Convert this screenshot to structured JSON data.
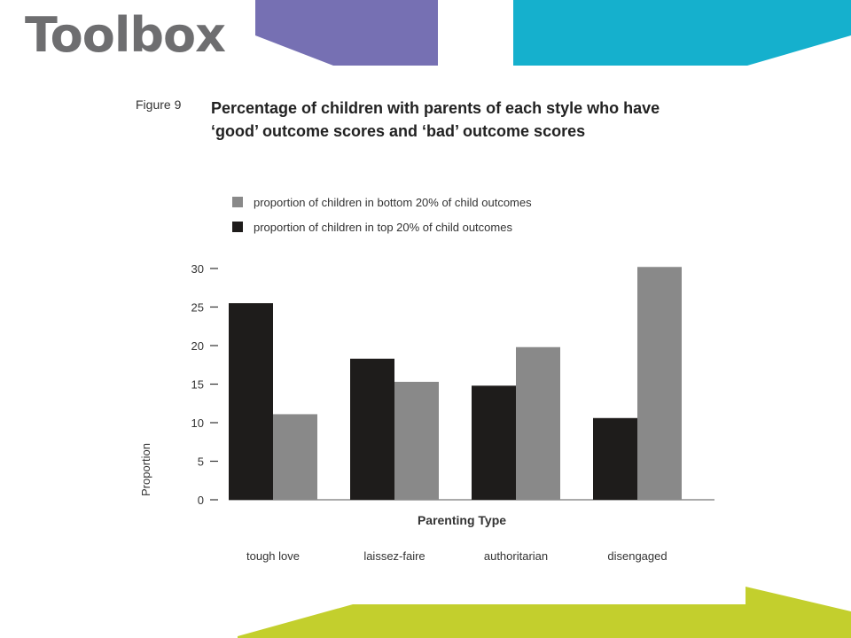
{
  "header": {
    "logo_text": "Toolbox"
  },
  "figure": {
    "label": "Figure 9",
    "title": "Percentage of children with parents of each style who have ‘good’ outcome scores and ‘bad’ outcome scores"
  },
  "colors": {
    "top": "#1e1c1b",
    "bottom": "#898989",
    "purple": "#7670b3",
    "teal": "#15b0cd",
    "lime": "#c3cf2d",
    "logo": "#6e6e70"
  },
  "chart_data": {
    "type": "bar",
    "xlabel": "Parenting Type",
    "ylabel": "Proportion",
    "categories": [
      "tough love",
      "laissez-faire",
      "authoritarian",
      "disengaged"
    ],
    "ylim": [
      0,
      30
    ],
    "yticks": [
      0,
      5,
      10,
      15,
      20,
      25,
      30
    ],
    "legend_position": "top-left",
    "grid": false,
    "series": [
      {
        "name": "proportion of children in top 20% of child outcomes",
        "color": "#1e1c1b",
        "values": [
          25.5,
          18.3,
          14.8,
          10.6
        ]
      },
      {
        "name": "proportion of children in bottom 20% of child outcomes",
        "color": "#898989",
        "values": [
          11.1,
          15.3,
          19.8,
          30.2
        ]
      }
    ]
  }
}
